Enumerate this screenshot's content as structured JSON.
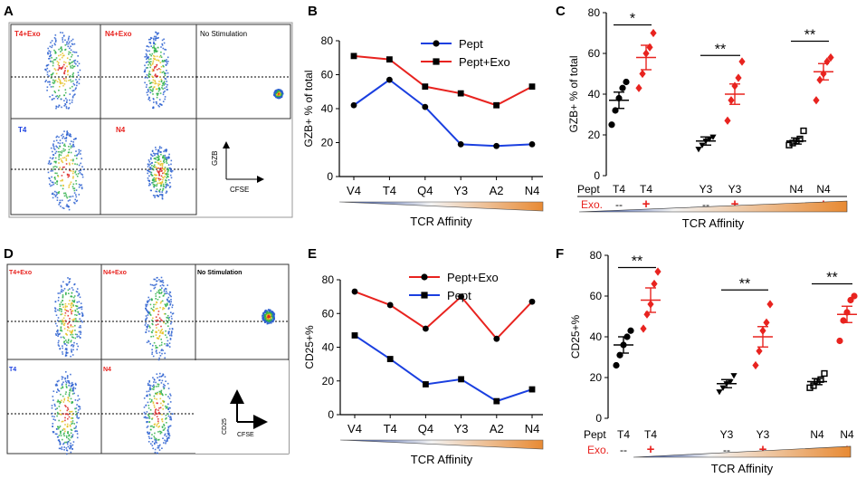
{
  "colors": {
    "blue": "#1a3fe0",
    "red": "#e8231f",
    "black": "#000000",
    "grid": "#222222"
  },
  "panel_letters": {
    "A": "A",
    "B": "B",
    "C": "C",
    "D": "D",
    "E": "E",
    "F": "F"
  },
  "flow_labels": {
    "a_t4exo": "T4+Exo",
    "a_n4exo": "N4+Exo",
    "a_nostim": "No Stimulation",
    "a_t4": "T4",
    "a_n4": "N4",
    "d_t4exo": "T4+Exo",
    "d_n4exo": "N4+Exo",
    "d_nostim": "No Stimulation",
    "d_t4": "T4",
    "d_n4": "N4",
    "a_axis_y": "GZB",
    "a_axis_x": "CFSE",
    "d_axis_y": "CD25",
    "d_axis_x": "CFSE"
  },
  "affinity_label": "TCR Affinity",
  "dot_row_labels": {
    "pept": "Pept",
    "exo": "Exo."
  },
  "chart_data": [
    {
      "id": "B",
      "type": "line",
      "title": "",
      "categories": [
        "V4",
        "T4",
        "Q4",
        "Y3",
        "A2",
        "N4"
      ],
      "ylabel": "GZB+ % of total",
      "xlabel": "TCR Affinity",
      "ylim": [
        0,
        80
      ],
      "yticks": [
        0,
        20,
        40,
        60,
        80
      ],
      "series": [
        {
          "name": "Pept",
          "color": "#1a3fe0",
          "marker": "circle",
          "values": [
            42,
            57,
            41,
            19,
            18,
            19
          ]
        },
        {
          "name": "Pept+Exo",
          "color": "#e8231f",
          "marker": "square",
          "values": [
            71,
            69,
            53,
            49,
            42,
            53
          ]
        }
      ],
      "legend": "top-right"
    },
    {
      "id": "E",
      "type": "line",
      "title": "",
      "categories": [
        "V4",
        "T4",
        "Q4",
        "Y3",
        "A2",
        "N4"
      ],
      "ylabel": "CD25+%",
      "xlabel": "TCR Affinity",
      "ylim": [
        0,
        80
      ],
      "yticks": [
        0,
        20,
        40,
        60,
        80
      ],
      "series": [
        {
          "name": "Pept+Exo",
          "color": "#e8231f",
          "marker": "circle",
          "values": [
            73,
            65,
            51,
            70,
            45,
            67
          ]
        },
        {
          "name": "Pept",
          "color": "#1a3fe0",
          "marker": "square",
          "values": [
            47,
            33,
            18,
            21,
            8,
            15
          ]
        }
      ],
      "legend": "top-right"
    },
    {
      "id": "C",
      "type": "scatter",
      "title": "",
      "ylabel": "GZB+ % of total",
      "xlabel": "TCR Affinity",
      "ylim": [
        0,
        80
      ],
      "yticks": [
        0,
        20,
        40,
        60,
        80
      ],
      "pept_labels": [
        "T4",
        "T4",
        "Y3",
        "Y3",
        "N4",
        "N4"
      ],
      "exo_labels": [
        "--",
        "+",
        "--",
        "+",
        "--",
        "+"
      ],
      "groups": [
        {
          "name": "T4",
          "color": "#000000",
          "marker": "circle",
          "mean": 37,
          "sem": 4,
          "points": [
            25,
            32,
            38,
            43,
            46
          ]
        },
        {
          "name": "T4+Exo",
          "color": "#e8231f",
          "marker": "diamond",
          "mean": 58,
          "sem": 6,
          "points": [
            43,
            50,
            60,
            63,
            70
          ]
        },
        {
          "name": "Y3",
          "color": "#000000",
          "marker": "triangle-down",
          "mean": 17,
          "sem": 2,
          "points": [
            13,
            15,
            17,
            18,
            19
          ]
        },
        {
          "name": "Y3+Exo",
          "color": "#e8231f",
          "marker": "diamond",
          "mean": 40,
          "sem": 5,
          "points": [
            27,
            37,
            44,
            48,
            56
          ]
        },
        {
          "name": "N4",
          "color": "#000000",
          "marker": "square-open",
          "mean": 17,
          "sem": 1.5,
          "points": [
            15,
            16,
            17,
            18,
            22
          ]
        },
        {
          "name": "N4+Exo",
          "color": "#e8231f",
          "marker": "diamond",
          "mean": 51,
          "sem": 4,
          "points": [
            37,
            47,
            50,
            56,
            58
          ]
        }
      ],
      "significance": [
        {
          "between": [
            0,
            1
          ],
          "label": "*",
          "y": 74
        },
        {
          "between": [
            2,
            3
          ],
          "label": "**",
          "y": 59
        },
        {
          "between": [
            4,
            5
          ],
          "label": "**",
          "y": 66
        }
      ]
    },
    {
      "id": "F",
      "type": "scatter",
      "title": "",
      "ylabel": "CD25+%",
      "xlabel": "TCR Affinity",
      "ylim": [
        0,
        80
      ],
      "yticks": [
        0,
        20,
        40,
        60,
        80
      ],
      "pept_labels": [
        "T4",
        "T4",
        "Y3",
        "Y3",
        "N4",
        "N4"
      ],
      "exo_labels": [
        "--",
        "+",
        "--",
        "+",
        "--",
        "+"
      ],
      "groups": [
        {
          "name": "T4",
          "color": "#000000",
          "marker": "circle",
          "mean": 36,
          "sem": 4,
          "points": [
            26,
            31,
            36,
            40,
            43
          ]
        },
        {
          "name": "T4+Exo",
          "color": "#e8231f",
          "marker": "diamond",
          "mean": 58,
          "sem": 6,
          "points": [
            44,
            51,
            56,
            66,
            72
          ]
        },
        {
          "name": "Y3",
          "color": "#000000",
          "marker": "triangle-down",
          "mean": 17,
          "sem": 2,
          "points": [
            13,
            15,
            17,
            18,
            21
          ]
        },
        {
          "name": "Y3+Exo",
          "color": "#e8231f",
          "marker": "diamond",
          "mean": 40,
          "sem": 5,
          "points": [
            26,
            33,
            43,
            47,
            56
          ]
        },
        {
          "name": "N4",
          "color": "#000000",
          "marker": "square-open",
          "mean": 18,
          "sem": 1.5,
          "points": [
            15,
            16,
            18,
            19,
            22
          ]
        },
        {
          "name": "N4+Exo",
          "color": "#e8231f",
          "marker": "circle",
          "mean": 51,
          "sem": 4,
          "points": [
            38,
            48,
            52,
            58,
            60
          ]
        }
      ],
      "significance": [
        {
          "between": [
            0,
            1
          ],
          "label": "**",
          "y": 74
        },
        {
          "between": [
            2,
            3
          ],
          "label": "**",
          "y": 63
        },
        {
          "between": [
            4,
            5
          ],
          "label": "**",
          "y": 66
        }
      ]
    }
  ]
}
